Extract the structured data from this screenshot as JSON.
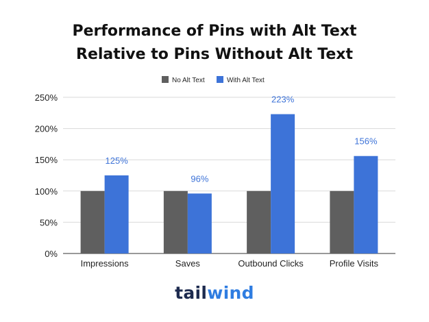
{
  "chart_data": {
    "type": "bar",
    "title_line1": "Performance of Pins with Alt Text",
    "title_line2": "Relative to Pins Without Alt Text",
    "categories": [
      "Impressions",
      "Saves",
      "Outbound Clicks",
      "Profile Visits"
    ],
    "series": [
      {
        "name": "No Alt Text",
        "color": "#5f5f5f",
        "values": [
          100,
          100,
          100,
          100
        ],
        "labels": [
          "",
          "",
          "",
          ""
        ]
      },
      {
        "name": "With Alt Text",
        "color": "#3d73d8",
        "values": [
          125,
          96,
          223,
          156
        ],
        "labels": [
          "125%",
          "96%",
          "223%",
          "156%"
        ]
      }
    ],
    "y_ticks": [
      0,
      50,
      100,
      150,
      200,
      250
    ],
    "y_tick_labels": [
      "0%",
      "50%",
      "100%",
      "150%",
      "200%",
      "250%"
    ],
    "ylim": [
      0,
      250
    ],
    "grid": true,
    "legend_position": "top-center",
    "data_label_color": "#3d73d8"
  },
  "logo": {
    "part1": "tail",
    "part2": "wind"
  }
}
